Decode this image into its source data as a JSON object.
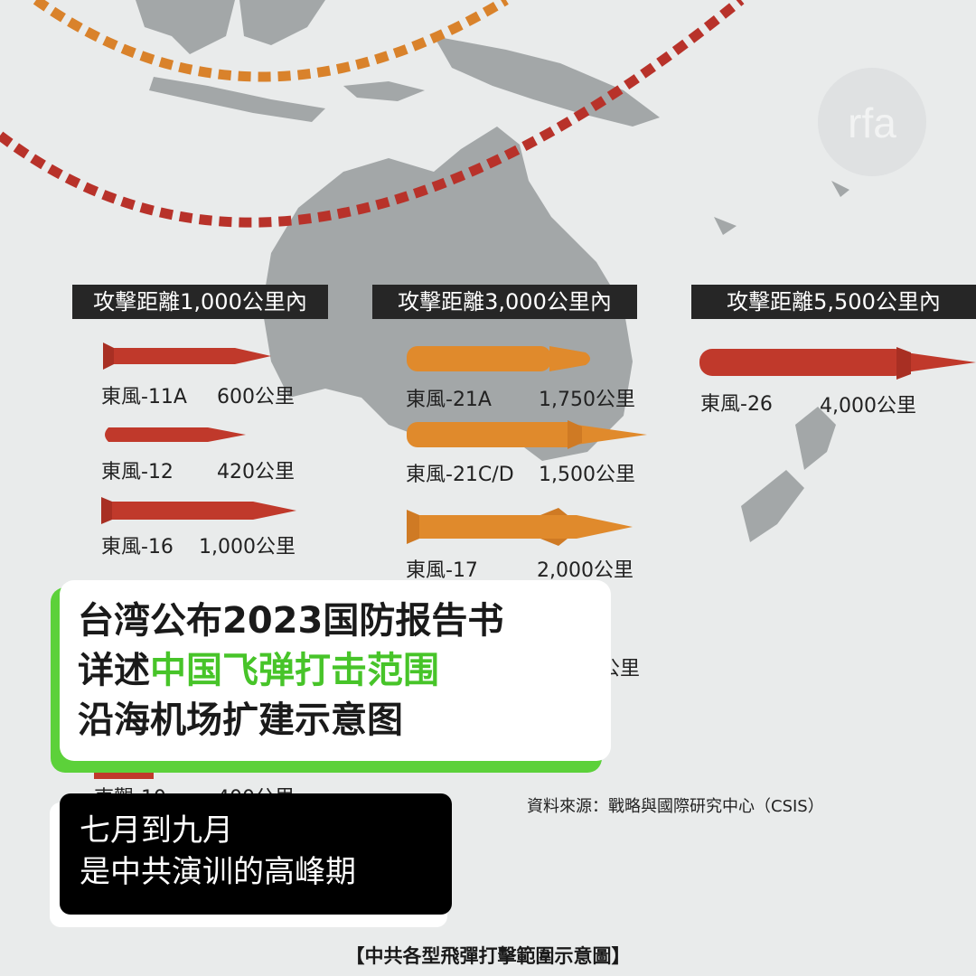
{
  "categories": [
    {
      "header": "攻擊距離1,000公里內",
      "missiles": [
        {
          "name": "東風-11A",
          "range": "600公里",
          "color": "#c0392b"
        },
        {
          "name": "東風-12",
          "range": "420公里",
          "color": "#c0392b"
        },
        {
          "name": "東風-16",
          "range": "1,000公里",
          "color": "#c0392b"
        }
      ]
    },
    {
      "header": "攻擊距離3,000公里內",
      "missiles": [
        {
          "name": "東風-21A",
          "range": "1,750公里",
          "color": "#e08a2c"
        },
        {
          "name": "東風-21C/D",
          "range": "1,500公里",
          "color": "#e08a2c"
        },
        {
          "name": "東風-17",
          "range": "2,000公里",
          "color": "#e08a2c"
        }
      ]
    },
    {
      "header": "攻擊距離5,500公里內",
      "missiles": [
        {
          "name": "東風-26",
          "range": "4,000公里",
          "color": "#c0392b"
        }
      ]
    }
  ],
  "partial_text": {
    "hidden_range_fragment": "公里",
    "bottom_left_name_fragment": "東觀-10",
    "bottom_left_range_fragment": "400公里"
  },
  "source": "資料來源：戰略與國際研究中心（CSIS）",
  "caption": "【中共各型飛彈打擊範圍示意圖】",
  "watermark": "rfa",
  "headline": {
    "line1": "台湾公布2023国防报告书",
    "line2_prefix": "详述",
    "line2_highlight": "中国飞弹打击范围",
    "line3": "沿海机场扩建示意图"
  },
  "subtitle": {
    "line1": "七月到九月",
    "line2": "是中共演训的高峰期"
  },
  "colors": {
    "range_ring_orange": "#d9822b",
    "range_ring_red": "#b8322a",
    "land": "#a3a7a8",
    "highlight_green": "#47c429"
  }
}
